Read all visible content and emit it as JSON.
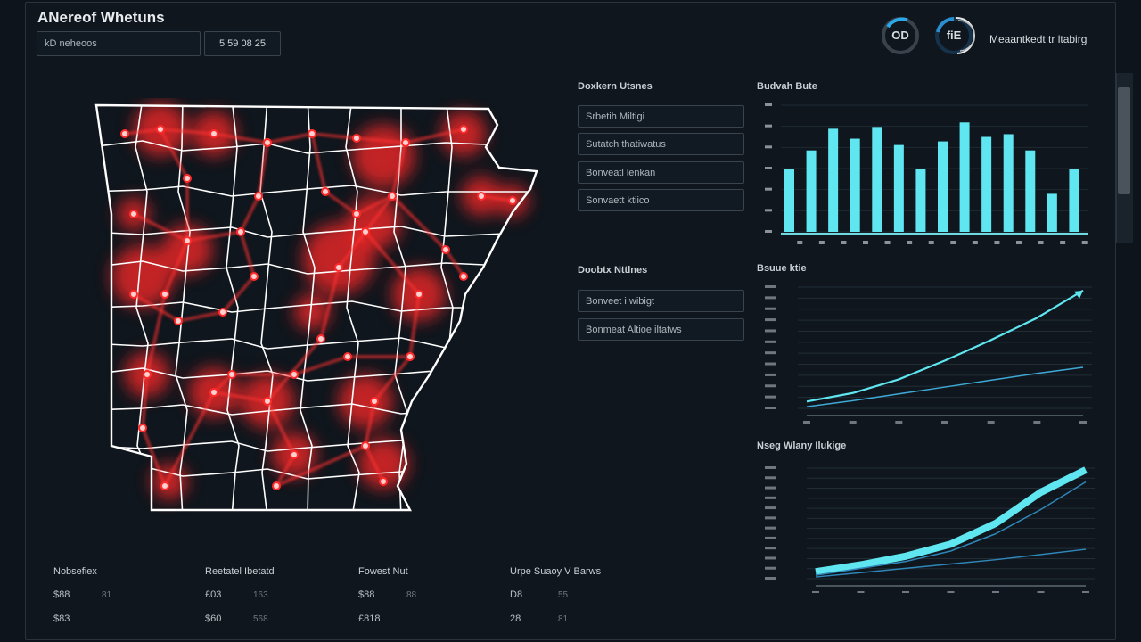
{
  "header": {
    "title": "ANereof Whetuns",
    "search_value": "kD neheoos",
    "time_value": "5 59 08 25",
    "gauge1_label": "OD",
    "gauge2_label": "fiE",
    "status_text": "Meaantkedt tr ltabirg"
  },
  "panels": {
    "group1": {
      "title": "Doxkern Utsnes",
      "items": [
        "Srbetih Miltigi",
        "Sutatch thatiwatus",
        "Bonveatl lenkan",
        "Sonvaett ktiico"
      ]
    },
    "group2": {
      "title": "Doobtx Nttlnes",
      "items": [
        "Bonveet i wibigt",
        "Bonmeat Altioe iltatws"
      ]
    }
  },
  "stats": [
    {
      "label": "Nobsefiex",
      "rows": [
        [
          "$88",
          "81"
        ],
        [
          "$83",
          ""
        ]
      ]
    },
    {
      "label": "Reetatel Ibetatd",
      "rows": [
        [
          "£03",
          "163"
        ],
        [
          "$60",
          "568"
        ]
      ]
    },
    {
      "label": "Fowest Nut",
      "rows": [
        [
          "$88",
          "88"
        ],
        [
          "£818",
          ""
        ]
      ]
    },
    {
      "label": "Urpe Suaoy V Barws",
      "rows": [
        [
          "D8",
          "55"
        ],
        [
          "28",
          "81"
        ]
      ]
    }
  ],
  "colors": {
    "accent": "#5fe6f0",
    "heat": "#ff2a2a",
    "map_line": "#ffffff",
    "background": "#0f161d"
  },
  "map": {
    "icon": "arkansas-heat-map"
  },
  "chart_data": [
    {
      "type": "bar",
      "title": "Budvah Bute",
      "values": [
        69,
        90,
        114,
        103,
        116,
        96,
        70,
        100,
        121,
        105,
        108,
        90,
        42,
        69
      ],
      "ylim": [
        0,
        140
      ],
      "grid": true,
      "color": "#5fe6f0"
    },
    {
      "type": "line",
      "title": "Bsuue ktie",
      "x": [
        0,
        1,
        2,
        3,
        4,
        5,
        6
      ],
      "series": [
        {
          "values": [
            2,
            12,
            28,
            50,
            74,
            100,
            132
          ],
          "color": "#5fe6f0"
        },
        {
          "values": [
            -4,
            3,
            11,
            19,
            27,
            35,
            42
          ],
          "color": "#3fa9d6"
        }
      ],
      "ylim": [
        -6,
        136
      ],
      "grid": true
    },
    {
      "type": "area",
      "title": "Nseg Wlany Ilukige",
      "x": [
        0,
        1,
        2,
        3,
        4,
        5,
        6
      ],
      "series": [
        {
          "values": [
            4,
            12,
            22,
            36,
            60,
            96,
            122
          ],
          "color": "#5fe6f0"
        },
        {
          "values": [
            0,
            8,
            16,
            28,
            48,
            76,
            108
          ],
          "color": "#2f86b8"
        },
        {
          "values": [
            -2,
            3,
            8,
            13,
            18,
            24,
            30
          ],
          "color": "#2f86b8"
        }
      ],
      "ylim": [
        -4,
        124
      ],
      "grid": true
    }
  ]
}
